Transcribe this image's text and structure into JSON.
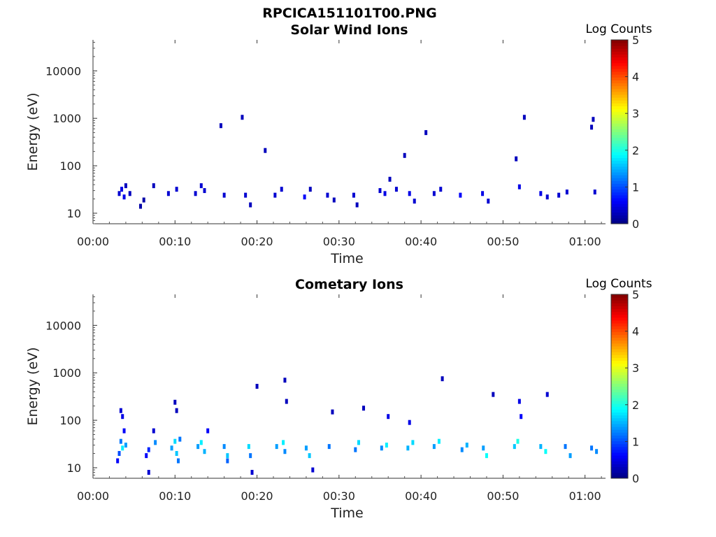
{
  "figure": {
    "title": "RPCICA151101T00.PNG"
  },
  "chart_data": [
    {
      "type": "heatmap",
      "title": "Solar Wind Ions",
      "xlabel": "Time",
      "ylabel": "Energy (eV)",
      "y_scale": "log",
      "ylim": [
        6,
        45000
      ],
      "xlim_minutes": [
        0,
        62.5
      ],
      "x_tick_labels": [
        "00:00",
        "00:10",
        "00:20",
        "00:30",
        "00:40",
        "00:50",
        "01:00"
      ],
      "x_tick_minutes": [
        0,
        10,
        20,
        30,
        40,
        50,
        60
      ],
      "y_tick_labels": [
        "10",
        "100",
        "1000",
        "10000"
      ],
      "y_tick_values": [
        10,
        100,
        1000,
        10000
      ],
      "colorbar": {
        "label": "Log Counts",
        "ticks": [
          "0",
          "1",
          "2",
          "3",
          "4",
          "5"
        ],
        "range": [
          0,
          5
        ],
        "colormap": "jet"
      },
      "cells": [
        {
          "t": 3.2,
          "e": 26,
          "v": 0.4
        },
        {
          "t": 3.5,
          "e": 32,
          "v": 0.5
        },
        {
          "t": 3.8,
          "e": 22,
          "v": 0.5
        },
        {
          "t": 4.0,
          "e": 38,
          "v": 0.3
        },
        {
          "t": 4.5,
          "e": 26,
          "v": 0.3
        },
        {
          "t": 5.8,
          "e": 14,
          "v": 0.2
        },
        {
          "t": 6.2,
          "e": 19,
          "v": 0.2
        },
        {
          "t": 7.4,
          "e": 38,
          "v": 0.3
        },
        {
          "t": 9.2,
          "e": 26,
          "v": 0.4
        },
        {
          "t": 10.2,
          "e": 32,
          "v": 0.4
        },
        {
          "t": 12.5,
          "e": 26,
          "v": 0.4
        },
        {
          "t": 13.2,
          "e": 38,
          "v": 0.4
        },
        {
          "t": 13.6,
          "e": 30,
          "v": 0.4
        },
        {
          "t": 15.6,
          "e": 700,
          "v": 0.3
        },
        {
          "t": 16.0,
          "e": 24,
          "v": 0.4
        },
        {
          "t": 18.2,
          "e": 1050,
          "v": 0.3
        },
        {
          "t": 18.6,
          "e": 24,
          "v": 0.4
        },
        {
          "t": 19.2,
          "e": 15,
          "v": 0.3
        },
        {
          "t": 21.0,
          "e": 210,
          "v": 0.3
        },
        {
          "t": 22.2,
          "e": 24,
          "v": 0.4
        },
        {
          "t": 23.0,
          "e": 32,
          "v": 0.4
        },
        {
          "t": 25.8,
          "e": 22,
          "v": 0.6
        },
        {
          "t": 26.5,
          "e": 32,
          "v": 0.3
        },
        {
          "t": 28.6,
          "e": 24,
          "v": 0.4
        },
        {
          "t": 29.4,
          "e": 19,
          "v": 0.3
        },
        {
          "t": 31.8,
          "e": 24,
          "v": 0.4
        },
        {
          "t": 32.2,
          "e": 15,
          "v": 0.3
        },
        {
          "t": 35.0,
          "e": 30,
          "v": 0.4
        },
        {
          "t": 35.6,
          "e": 26,
          "v": 0.5
        },
        {
          "t": 36.2,
          "e": 52,
          "v": 0.3
        },
        {
          "t": 37.0,
          "e": 32,
          "v": 0.4
        },
        {
          "t": 38.0,
          "e": 165,
          "v": 0.3
        },
        {
          "t": 38.6,
          "e": 26,
          "v": 0.5
        },
        {
          "t": 39.2,
          "e": 18,
          "v": 0.4
        },
        {
          "t": 40.6,
          "e": 500,
          "v": 0.3
        },
        {
          "t": 41.6,
          "e": 26,
          "v": 0.4
        },
        {
          "t": 42.4,
          "e": 32,
          "v": 0.4
        },
        {
          "t": 44.8,
          "e": 24,
          "v": 0.6
        },
        {
          "t": 47.5,
          "e": 26,
          "v": 0.5
        },
        {
          "t": 48.2,
          "e": 18,
          "v": 0.4
        },
        {
          "t": 51.6,
          "e": 140,
          "v": 0.3
        },
        {
          "t": 52.0,
          "e": 36,
          "v": 0.5
        },
        {
          "t": 52.6,
          "e": 1050,
          "v": 0.3
        },
        {
          "t": 54.6,
          "e": 26,
          "v": 0.5
        },
        {
          "t": 55.4,
          "e": 22,
          "v": 0.4
        },
        {
          "t": 56.8,
          "e": 24,
          "v": 0.4
        },
        {
          "t": 57.8,
          "e": 28,
          "v": 0.4
        },
        {
          "t": 60.8,
          "e": 650,
          "v": 0.3
        },
        {
          "t": 61.0,
          "e": 950,
          "v": 0.3
        },
        {
          "t": 61.2,
          "e": 28,
          "v": 0.4
        }
      ]
    },
    {
      "type": "heatmap",
      "title": "Cometary Ions",
      "xlabel": "Time",
      "ylabel": "Energy (eV)",
      "y_scale": "log",
      "ylim": [
        6,
        45000
      ],
      "xlim_minutes": [
        0,
        62.5
      ],
      "x_tick_labels": [
        "00:00",
        "00:10",
        "00:20",
        "00:30",
        "00:40",
        "00:50",
        "01:00"
      ],
      "x_tick_minutes": [
        0,
        10,
        20,
        30,
        40,
        50,
        60
      ],
      "y_tick_labels": [
        "10",
        "100",
        "1000",
        "10000"
      ],
      "y_tick_values": [
        10,
        100,
        1000,
        10000
      ],
      "colorbar": {
        "label": "Log Counts",
        "ticks": [
          "0",
          "1",
          "2",
          "3",
          "4",
          "5"
        ],
        "range": [
          0,
          5
        ],
        "colormap": "jet"
      },
      "cells": [
        {
          "t": 3.4,
          "e": 160,
          "v": 0.4
        },
        {
          "t": 3.6,
          "e": 120,
          "v": 0.5
        },
        {
          "t": 3.8,
          "e": 60,
          "v": 0.6
        },
        {
          "t": 3.4,
          "e": 36,
          "v": 1.2
        },
        {
          "t": 3.6,
          "e": 26,
          "v": 1.8
        },
        {
          "t": 3.2,
          "e": 20,
          "v": 1.0
        },
        {
          "t": 4.0,
          "e": 30,
          "v": 1.4
        },
        {
          "t": 3.0,
          "e": 14,
          "v": 0.6
        },
        {
          "t": 6.5,
          "e": 18,
          "v": 0.6
        },
        {
          "t": 6.8,
          "e": 24,
          "v": 0.8
        },
        {
          "t": 6.8,
          "e": 8,
          "v": 0.4
        },
        {
          "t": 7.4,
          "e": 60,
          "v": 0.4
        },
        {
          "t": 7.6,
          "e": 34,
          "v": 1.3
        },
        {
          "t": 9.6,
          "e": 26,
          "v": 1.4
        },
        {
          "t": 10.0,
          "e": 36,
          "v": 1.7
        },
        {
          "t": 10.2,
          "e": 20,
          "v": 1.6
        },
        {
          "t": 10.4,
          "e": 14,
          "v": 1.2
        },
        {
          "t": 10.0,
          "e": 240,
          "v": 0.3
        },
        {
          "t": 10.2,
          "e": 160,
          "v": 0.3
        },
        {
          "t": 10.6,
          "e": 40,
          "v": 1.2
        },
        {
          "t": 12.8,
          "e": 28,
          "v": 1.4
        },
        {
          "t": 13.2,
          "e": 34,
          "v": 1.8
        },
        {
          "t": 13.6,
          "e": 22,
          "v": 1.5
        },
        {
          "t": 14.0,
          "e": 60,
          "v": 0.6
        },
        {
          "t": 16.0,
          "e": 28,
          "v": 1.3
        },
        {
          "t": 16.4,
          "e": 18,
          "v": 1.6
        },
        {
          "t": 16.4,
          "e": 14,
          "v": 1.1
        },
        {
          "t": 19.0,
          "e": 28,
          "v": 1.7
        },
        {
          "t": 19.2,
          "e": 18,
          "v": 1.2
        },
        {
          "t": 19.4,
          "e": 8,
          "v": 0.4
        },
        {
          "t": 20.0,
          "e": 520,
          "v": 0.3
        },
        {
          "t": 22.4,
          "e": 28,
          "v": 1.4
        },
        {
          "t": 23.2,
          "e": 34,
          "v": 1.8
        },
        {
          "t": 23.4,
          "e": 22,
          "v": 1.3
        },
        {
          "t": 23.4,
          "e": 700,
          "v": 0.3
        },
        {
          "t": 23.6,
          "e": 250,
          "v": 0.3
        },
        {
          "t": 26.0,
          "e": 26,
          "v": 1.4
        },
        {
          "t": 26.4,
          "e": 18,
          "v": 1.6
        },
        {
          "t": 26.8,
          "e": 9,
          "v": 0.4
        },
        {
          "t": 28.8,
          "e": 28,
          "v": 1.2
        },
        {
          "t": 29.2,
          "e": 150,
          "v": 0.3
        },
        {
          "t": 32.0,
          "e": 24,
          "v": 1.2
        },
        {
          "t": 32.4,
          "e": 34,
          "v": 1.7
        },
        {
          "t": 33.0,
          "e": 180,
          "v": 0.3
        },
        {
          "t": 35.2,
          "e": 26,
          "v": 1.3
        },
        {
          "t": 35.8,
          "e": 30,
          "v": 1.8
        },
        {
          "t": 36.0,
          "e": 120,
          "v": 0.5
        },
        {
          "t": 38.4,
          "e": 26,
          "v": 1.5
        },
        {
          "t": 38.6,
          "e": 90,
          "v": 0.5
        },
        {
          "t": 39.0,
          "e": 34,
          "v": 1.7
        },
        {
          "t": 41.6,
          "e": 28,
          "v": 1.4
        },
        {
          "t": 42.2,
          "e": 36,
          "v": 1.8
        },
        {
          "t": 42.6,
          "e": 750,
          "v": 0.3
        },
        {
          "t": 45.0,
          "e": 24,
          "v": 1.3
        },
        {
          "t": 45.6,
          "e": 30,
          "v": 1.5
        },
        {
          "t": 47.6,
          "e": 26,
          "v": 1.4
        },
        {
          "t": 48.0,
          "e": 18,
          "v": 1.9
        },
        {
          "t": 48.8,
          "e": 350,
          "v": 0.3
        },
        {
          "t": 51.4,
          "e": 28,
          "v": 1.6
        },
        {
          "t": 51.8,
          "e": 36,
          "v": 2.0
        },
        {
          "t": 52.0,
          "e": 250,
          "v": 0.5
        },
        {
          "t": 52.2,
          "e": 120,
          "v": 0.6
        },
        {
          "t": 54.6,
          "e": 28,
          "v": 1.5
        },
        {
          "t": 55.2,
          "e": 22,
          "v": 1.9
        },
        {
          "t": 55.4,
          "e": 350,
          "v": 0.4
        },
        {
          "t": 57.6,
          "e": 28,
          "v": 1.2
        },
        {
          "t": 58.2,
          "e": 18,
          "v": 1.4
        },
        {
          "t": 60.8,
          "e": 26,
          "v": 1.2
        },
        {
          "t": 61.4,
          "e": 22,
          "v": 1.3
        }
      ]
    }
  ]
}
